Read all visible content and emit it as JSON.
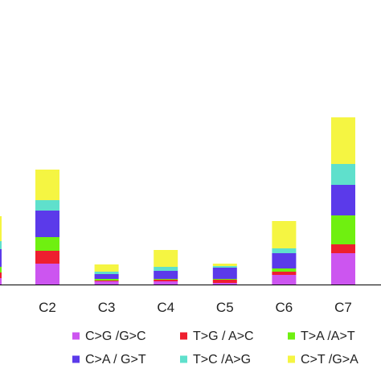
{
  "chart_data": {
    "type": "bar",
    "stacked": true,
    "categories": [
      "C2",
      "C3",
      "C4",
      "C5",
      "C6",
      "C7"
    ],
    "legend_position": "bottom",
    "grid": false,
    "ylim": [
      0,
      220
    ],
    "series": [
      {
        "name": "C>G /G>C",
        "color": "#cc55f0",
        "values": [
          26,
          4,
          4,
          2,
          12,
          39
        ]
      },
      {
        "name": "T>G / A>C",
        "color": "#ee1f2f",
        "values": [
          16,
          1,
          2,
          4,
          4,
          11
        ]
      },
      {
        "name": "T>A /A>T",
        "color": "#6ff010",
        "values": [
          17,
          2,
          1,
          1,
          4,
          36
        ]
      },
      {
        "name": "C>A / G>T",
        "color": "#5b3aea",
        "values": [
          33,
          6,
          10,
          14,
          19,
          38
        ]
      },
      {
        "name": "T>C /A>G",
        "color": "#5fe0cc",
        "values": [
          13,
          3,
          5,
          2,
          6,
          26
        ]
      },
      {
        "name": "C>T /G>A",
        "color": "#f5f542",
        "values": [
          38,
          9,
          21,
          3,
          34,
          58
        ]
      }
    ]
  },
  "legend_order": [
    0,
    1,
    2,
    3,
    4,
    5
  ],
  "partial_bar": {
    "values": [
      8,
      7,
      7,
      22,
      10,
      31
    ]
  }
}
